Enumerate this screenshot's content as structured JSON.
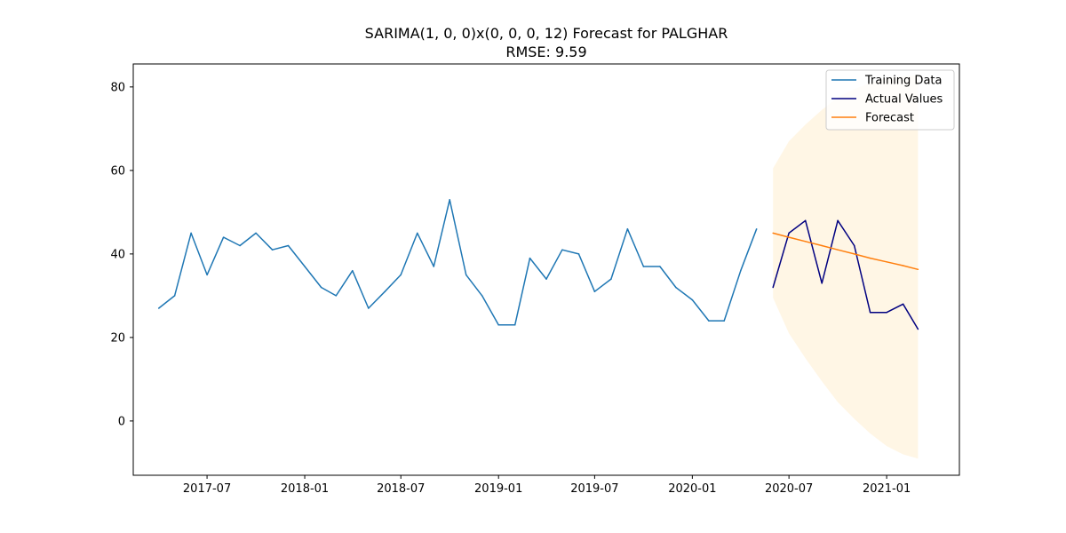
{
  "chart_data": {
    "type": "line",
    "title": "SARIMA(1, 0, 0)x(0, 0, 0, 12) Forecast for PALGHAR",
    "subtitle": "RMSE: 9.59",
    "xlabel": "",
    "ylabel": "",
    "xlim": [
      "2017-02-12",
      "2021-05-18"
    ],
    "ylim": [
      -13,
      85.5
    ],
    "x_ticks": [
      "2017-07",
      "2018-01",
      "2018-07",
      "2019-01",
      "2019-07",
      "2020-01",
      "2020-07",
      "2021-01"
    ],
    "y_ticks": [
      0,
      20,
      40,
      60,
      80
    ],
    "grid": false,
    "legend_position": "top-right",
    "series": [
      {
        "name": "Training Data",
        "color": "#1f77b4",
        "x": [
          "2017-04",
          "2017-05",
          "2017-06",
          "2017-07",
          "2017-08",
          "2017-09",
          "2017-10",
          "2017-11",
          "2017-12",
          "2018-01",
          "2018-02",
          "2018-03",
          "2018-04",
          "2018-05",
          "2018-06",
          "2018-07",
          "2018-08",
          "2018-09",
          "2018-10",
          "2018-11",
          "2018-12",
          "2019-01",
          "2019-02",
          "2019-03",
          "2019-04",
          "2019-05",
          "2019-06",
          "2019-07",
          "2019-08",
          "2019-09",
          "2019-10",
          "2019-11",
          "2019-12",
          "2020-01",
          "2020-02",
          "2020-03",
          "2020-04",
          "2020-05"
        ],
        "values": [
          27,
          30,
          45,
          35,
          44,
          42,
          45,
          41,
          42,
          37,
          32,
          30,
          36,
          27,
          31,
          35,
          45,
          37,
          53,
          35,
          30,
          23,
          23,
          39,
          34,
          41,
          40,
          31,
          34,
          46,
          37,
          37,
          32,
          29,
          24,
          24,
          36,
          46
        ]
      },
      {
        "name": "Actual Values",
        "color": "#000080",
        "x": [
          "2020-06",
          "2020-07",
          "2020-08",
          "2020-09",
          "2020-10",
          "2020-11",
          "2020-12",
          "2021-01",
          "2021-02",
          "2021-03"
        ],
        "values": [
          32,
          45,
          48,
          33,
          48,
          42,
          26,
          26,
          28,
          22
        ]
      },
      {
        "name": "Forecast",
        "color": "#ff7f0e",
        "x": [
          "2020-06",
          "2020-07",
          "2020-08",
          "2020-09",
          "2020-10",
          "2020-11",
          "2020-12",
          "2021-01",
          "2021-02",
          "2021-03"
        ],
        "values": [
          45.0,
          44.0,
          43.0,
          42.0,
          41.0,
          40.0,
          39.0,
          38.1,
          37.2,
          36.3
        ],
        "ci_lower": [
          29.5,
          21.0,
          15.0,
          9.5,
          4.5,
          0.5,
          -3.0,
          -6.0,
          -8.0,
          -9.0
        ],
        "ci_upper": [
          60.5,
          67.0,
          71.0,
          74.5,
          77.5,
          79.5,
          81.0,
          82.2,
          82.6,
          82.9
        ],
        "ci_color": "#ffa500"
      }
    ]
  }
}
